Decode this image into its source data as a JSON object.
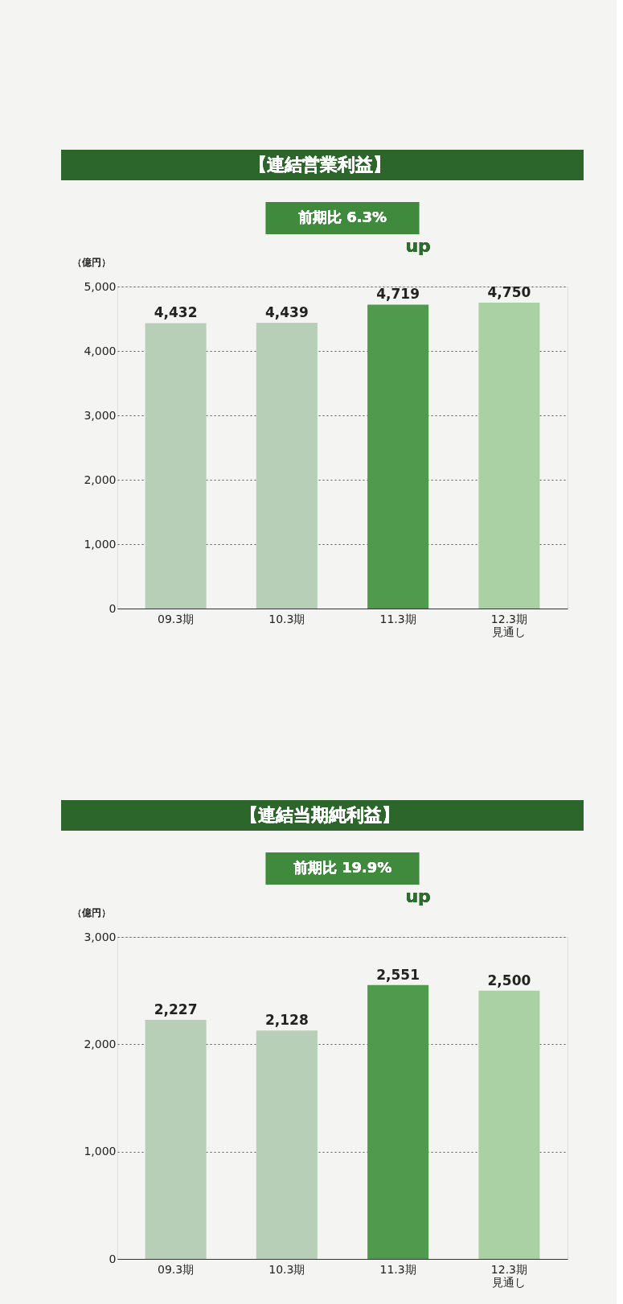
{
  "chart_data": [
    {
      "type": "bar",
      "title": "【連結営業利益】",
      "ylabel": "（億円）",
      "categories": [
        "09.3期",
        "10.3期",
        "11.3期",
        "12.3期見通し"
      ],
      "values": [
        4432,
        4439,
        4719,
        4750
      ],
      "value_labels": [
        "4,432",
        "4,439",
        "4,719",
        "4,750"
      ],
      "colors": [
        "#b7cfb6",
        "#b7cfb6",
        "#4f9a4c",
        "#a9d1a3"
      ],
      "ylim": [
        0,
        5000
      ],
      "yticks": [
        0,
        {
          "value": 1000,
          "label": "1,000"
        },
        {
          "value": 2000,
          "label": "2,000"
        },
        {
          "value": 3000,
          "label": "3,000"
        },
        {
          "value": 4000,
          "label": "4,000"
        },
        {
          "value": 5000,
          "label": "5,000"
        }
      ],
      "grid": "y",
      "annotations": [
        "前期比 6.3%",
        "up"
      ]
    },
    {
      "type": "bar",
      "title": "【連結当期純利益】",
      "ylabel": "（億円）",
      "categories": [
        "09.3期",
        "10.3期",
        "11.3期",
        "12.3期見通し"
      ],
      "values": [
        2227,
        2128,
        2551,
        2500
      ],
      "value_labels": [
        "2,227",
        "2,128",
        "2,551",
        "2,500"
      ],
      "colors": [
        "#b7cfb6",
        "#b7cfb6",
        "#4f9a4c",
        "#a9d1a3"
      ],
      "ylim": [
        0,
        3000
      ],
      "yticks": [
        0,
        {
          "value": 1000,
          "label": "1,000"
        },
        {
          "value": 2000,
          "label": "2,000"
        },
        {
          "value": 3000,
          "label": "3,000"
        }
      ],
      "grid": "y",
      "annotations": [
        "前期比 19.9%",
        "up"
      ]
    }
  ]
}
